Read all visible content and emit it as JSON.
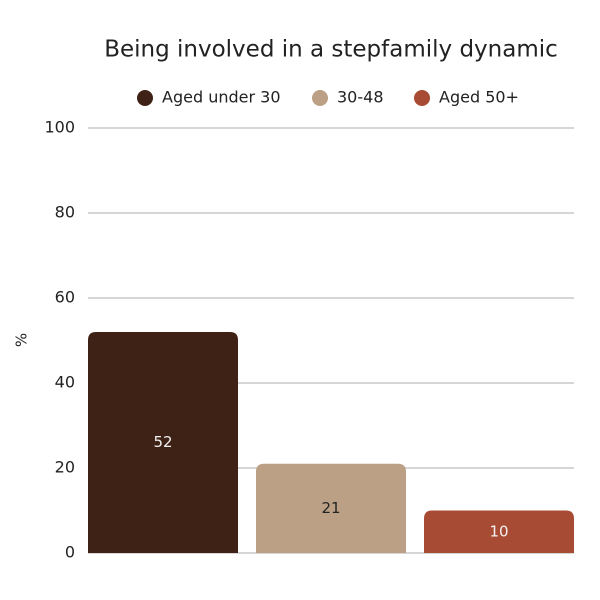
{
  "chart_data": {
    "type": "bar",
    "title": "Being involved in a stepfamily dynamic",
    "y_label": "%",
    "categories": [
      null
    ],
    "series": [
      {
        "name": "Aged under 30",
        "color": "#3f2216",
        "values": [
          52
        ]
      },
      {
        "name": "30-48",
        "color": "#bba086",
        "values": [
          21
        ]
      },
      {
        "name": "Aged 50+",
        "color": "#a84b35",
        "values": [
          10
        ]
      }
    ],
    "ylim": [
      0,
      100
    ],
    "yticks": [
      0,
      20,
      40,
      60,
      80,
      100
    ],
    "grid": true,
    "legend": "top"
  }
}
